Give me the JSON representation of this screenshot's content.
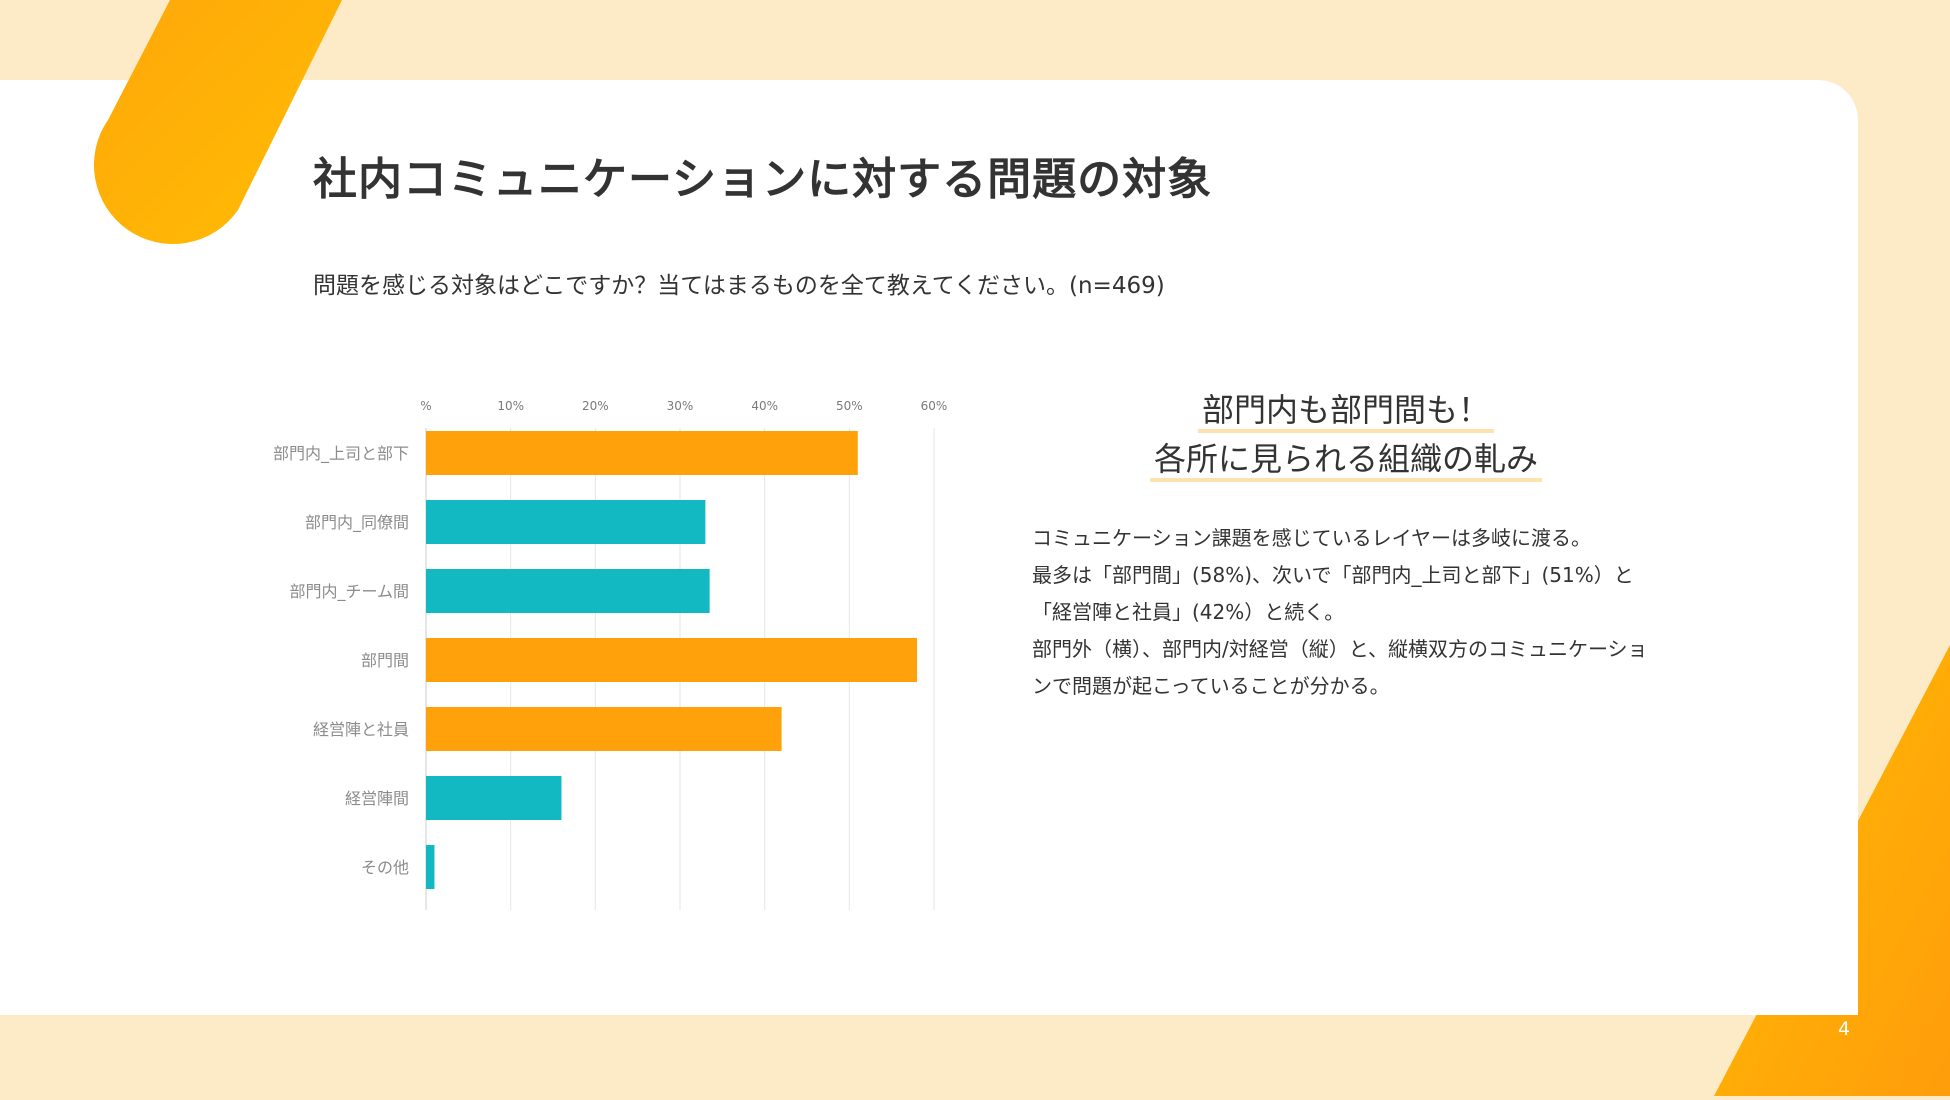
{
  "slide": {
    "title": "社内コミュニケーションに対する問題の対象",
    "question": "問題を感じる対象はどこですか？当てはまるものを全て教えてください。(n=469)",
    "page_number": "4"
  },
  "summary": {
    "headline_line1": "部門内も部門間も！",
    "headline_line2": "各所に見られる組織の軋み",
    "body": [
      "コミュニケーション課題を感じているレイヤーは多岐に渡る。",
      "最多は「部門間」(58%)、次いで「部門内_上司と部下」(51%）と",
      "「経営陣と社員」(42%）と続く。",
      "部門外（横）、部門内/対経営（縦）と、縦横双方のコミュニケーショ",
      "ンで問題が起こっていることが分かる。"
    ]
  },
  "colors": {
    "background": "#fdebc8",
    "accent_orange": "#ffa10a",
    "accent_teal": "#12b8c2",
    "deco_orange_top": "#ffbb03",
    "deco_orange_bottom": "#ff9d0b",
    "text": "#333333",
    "headline_underline": "#fde2ad"
  },
  "chart_data": {
    "type": "bar",
    "orientation": "horizontal",
    "categories": [
      "部門内_上司と部下",
      "部門内_同僚間",
      "部門内_チーム間",
      "部門間",
      "経営陣と社員",
      "経営陣間",
      "その他"
    ],
    "values": [
      51,
      33,
      33.5,
      58,
      42,
      16,
      1
    ],
    "bar_colors": [
      "#ffa10a",
      "#12b8c2",
      "#12b8c2",
      "#ffa10a",
      "#ffa10a",
      "#12b8c2",
      "#12b8c2"
    ],
    "x_ticks": [
      "%",
      "10%",
      "20%",
      "30%",
      "40%",
      "50%",
      "60%"
    ],
    "xlim": [
      0,
      60
    ],
    "grid": true,
    "x_axis_position": "top"
  }
}
